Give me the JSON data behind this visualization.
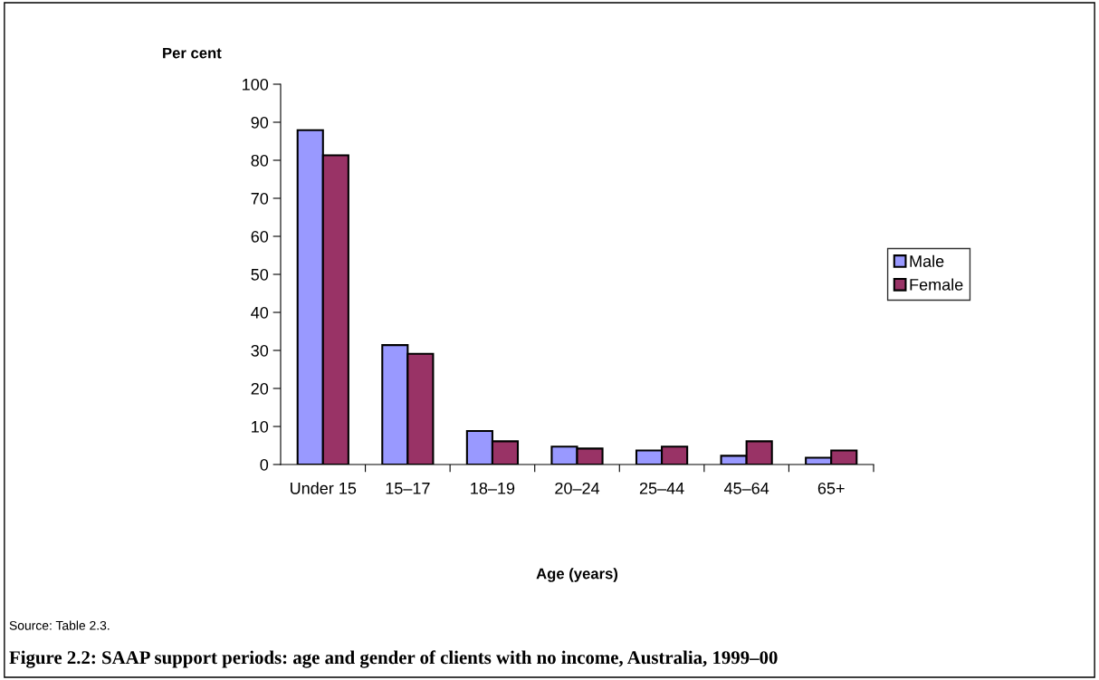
{
  "chart_data": {
    "type": "bar",
    "title": "Figure 2.2: SAAP support periods: age and gender of clients with no income, Australia, 1999–00",
    "ylabel": "Per cent",
    "xlabel": "Age (years)",
    "categories": [
      "Under 15",
      "15–17",
      "18–19",
      "20–24",
      "25–44",
      "45–64",
      "65+"
    ],
    "series": [
      {
        "name": "Male",
        "color": "#9999ff",
        "values": [
          87.9,
          31.4,
          8.8,
          4.7,
          3.7,
          2.3,
          1.8
        ]
      },
      {
        "name": "Female",
        "color": "#993366",
        "values": [
          81.3,
          29.1,
          6.1,
          4.2,
          4.7,
          6.1,
          3.7
        ]
      }
    ],
    "ylim": [
      0,
      100
    ],
    "yticks": [
      0,
      10,
      20,
      30,
      40,
      50,
      60,
      70,
      80,
      90,
      100
    ],
    "grid": false,
    "legend": "right",
    "annotations": [
      "Source: Table 2.3."
    ]
  }
}
